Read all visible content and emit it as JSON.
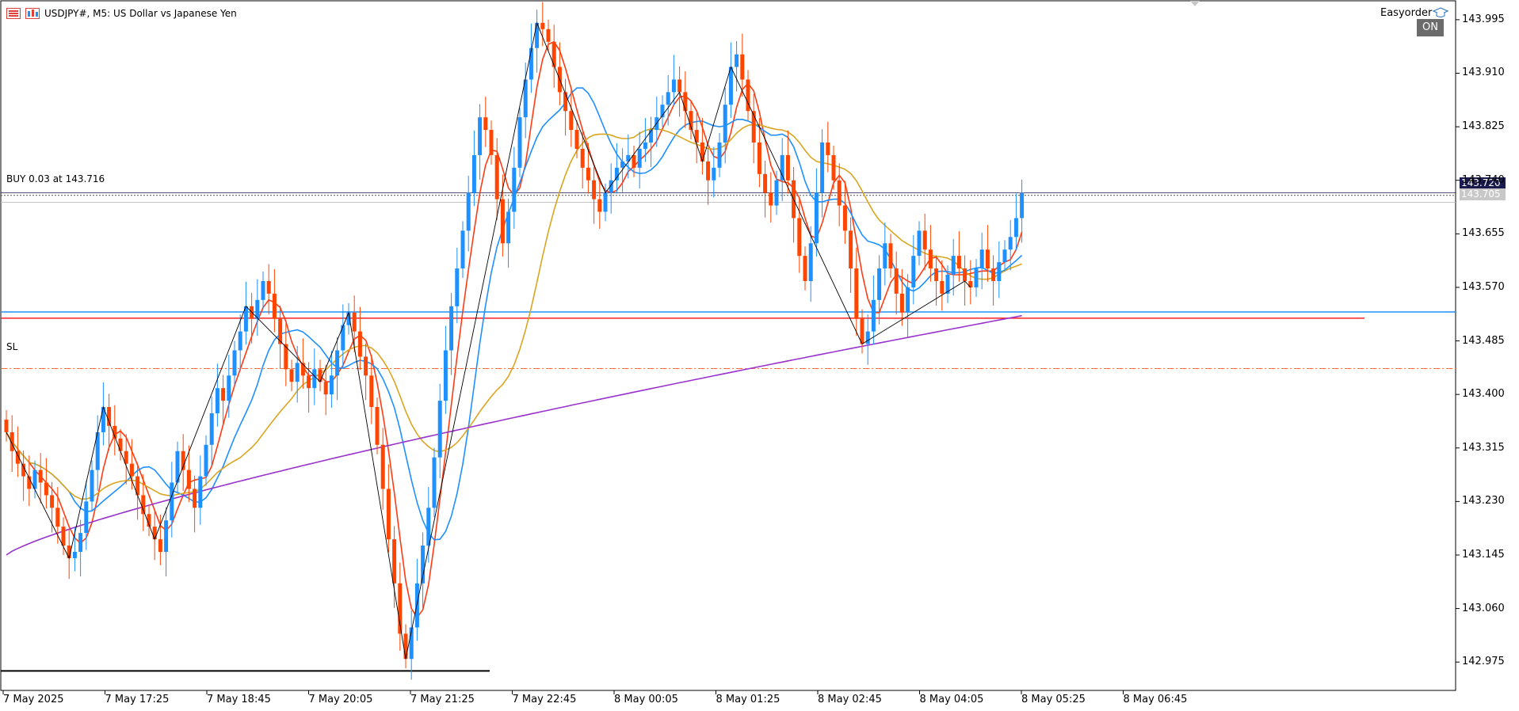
{
  "window": {
    "title": "USDJPY#, M5:  US Dollar vs Japanese Yen",
    "easyorder_label": "Easyorder",
    "on_badge": "ON"
  },
  "annotations": {
    "buy_label": "BUY 0.03 at 143.716",
    "sl_label": "SL"
  },
  "price_tags": {
    "bid": "143.720",
    "ask": "143.705"
  },
  "axis": {
    "y_ticks": [
      "143.995",
      "143.910",
      "143.825",
      "143.740",
      "143.655",
      "143.570",
      "143.485",
      "143.400",
      "143.315",
      "143.230",
      "143.145",
      "143.060",
      "142.975"
    ],
    "x_ticks": [
      "7 May 2025",
      "7 May 17:25",
      "7 May 18:45",
      "7 May 20:05",
      "7 May 21:25",
      "7 May 22:45",
      "8 May 00:05",
      "8 May 01:25",
      "8 May 02:45",
      "8 May 04:05",
      "8 May 05:25",
      "8 May 06:45"
    ]
  },
  "colors": {
    "bull": "#1e90ff",
    "bear": "#ff4500",
    "ma_fast": "#ff3b14",
    "ma_mid": "#1e90ff",
    "ma_slow": "#daa520",
    "ma_long": "#9932cc",
    "zigzag": "#000000",
    "bid_tag": "#1a1a4e",
    "ask_tag": "#c8c8c8"
  },
  "chart_data": {
    "type": "candlestick",
    "symbol": "USDJPY#",
    "timeframe": "M5",
    "ylim": [
      142.93,
      144.02
    ],
    "open_position_price": 143.716,
    "bid": 143.72,
    "ask": 143.705,
    "levels": {
      "sl": 143.441,
      "support_blue": 143.531,
      "support_red": 143.521,
      "low_black": 142.961
    },
    "closes": [
      143.34,
      143.31,
      143.29,
      143.27,
      143.25,
      143.28,
      143.26,
      143.24,
      143.22,
      143.19,
      143.16,
      143.14,
      143.15,
      143.18,
      143.23,
      143.28,
      143.34,
      143.38,
      143.35,
      143.33,
      143.31,
      143.29,
      143.27,
      143.24,
      143.21,
      143.19,
      143.17,
      143.15,
      143.2,
      143.26,
      143.31,
      143.28,
      143.25,
      143.22,
      143.27,
      143.32,
      143.37,
      143.41,
      143.39,
      143.43,
      143.47,
      143.5,
      143.54,
      143.52,
      143.55,
      143.58,
      143.56,
      143.52,
      143.48,
      143.44,
      143.42,
      143.45,
      143.43,
      143.41,
      143.44,
      143.42,
      143.4,
      143.43,
      143.47,
      143.51,
      143.53,
      143.5,
      143.46,
      143.43,
      143.38,
      143.32,
      143.25,
      143.17,
      143.1,
      143.02,
      142.98,
      143.03,
      143.1,
      143.16,
      143.22,
      143.3,
      143.39,
      143.47,
      143.54,
      143.6,
      143.66,
      143.72,
      143.78,
      143.84,
      143.82,
      143.78,
      143.71,
      143.64,
      143.69,
      143.76,
      143.84,
      143.9,
      143.95,
      143.99,
      143.98,
      143.96,
      143.92,
      143.88,
      143.85,
      143.82,
      143.79,
      143.76,
      143.74,
      143.71,
      143.69,
      143.72,
      143.74,
      143.76,
      143.77,
      143.78,
      143.76,
      143.79,
      143.8,
      143.82,
      143.84,
      143.86,
      143.88,
      143.9,
      143.88,
      143.85,
      143.82,
      143.8,
      143.77,
      143.74,
      143.76,
      143.8,
      143.86,
      143.92,
      143.94,
      143.9,
      143.85,
      143.8,
      143.75,
      143.72,
      143.7,
      143.74,
      143.78,
      143.74,
      143.68,
      143.62,
      143.58,
      143.64,
      143.72,
      143.8,
      143.78,
      143.74,
      143.7,
      143.66,
      143.6,
      143.52,
      143.48,
      143.5,
      143.55,
      143.6,
      143.64,
      143.6,
      143.56,
      143.53,
      143.57,
      143.62,
      143.66,
      143.63,
      143.6,
      143.58,
      143.56,
      143.59,
      143.62,
      143.6,
      143.58,
      143.57,
      143.6,
      143.63,
      143.6,
      143.58,
      143.61,
      143.63,
      143.65,
      143.68,
      143.72
    ]
  }
}
